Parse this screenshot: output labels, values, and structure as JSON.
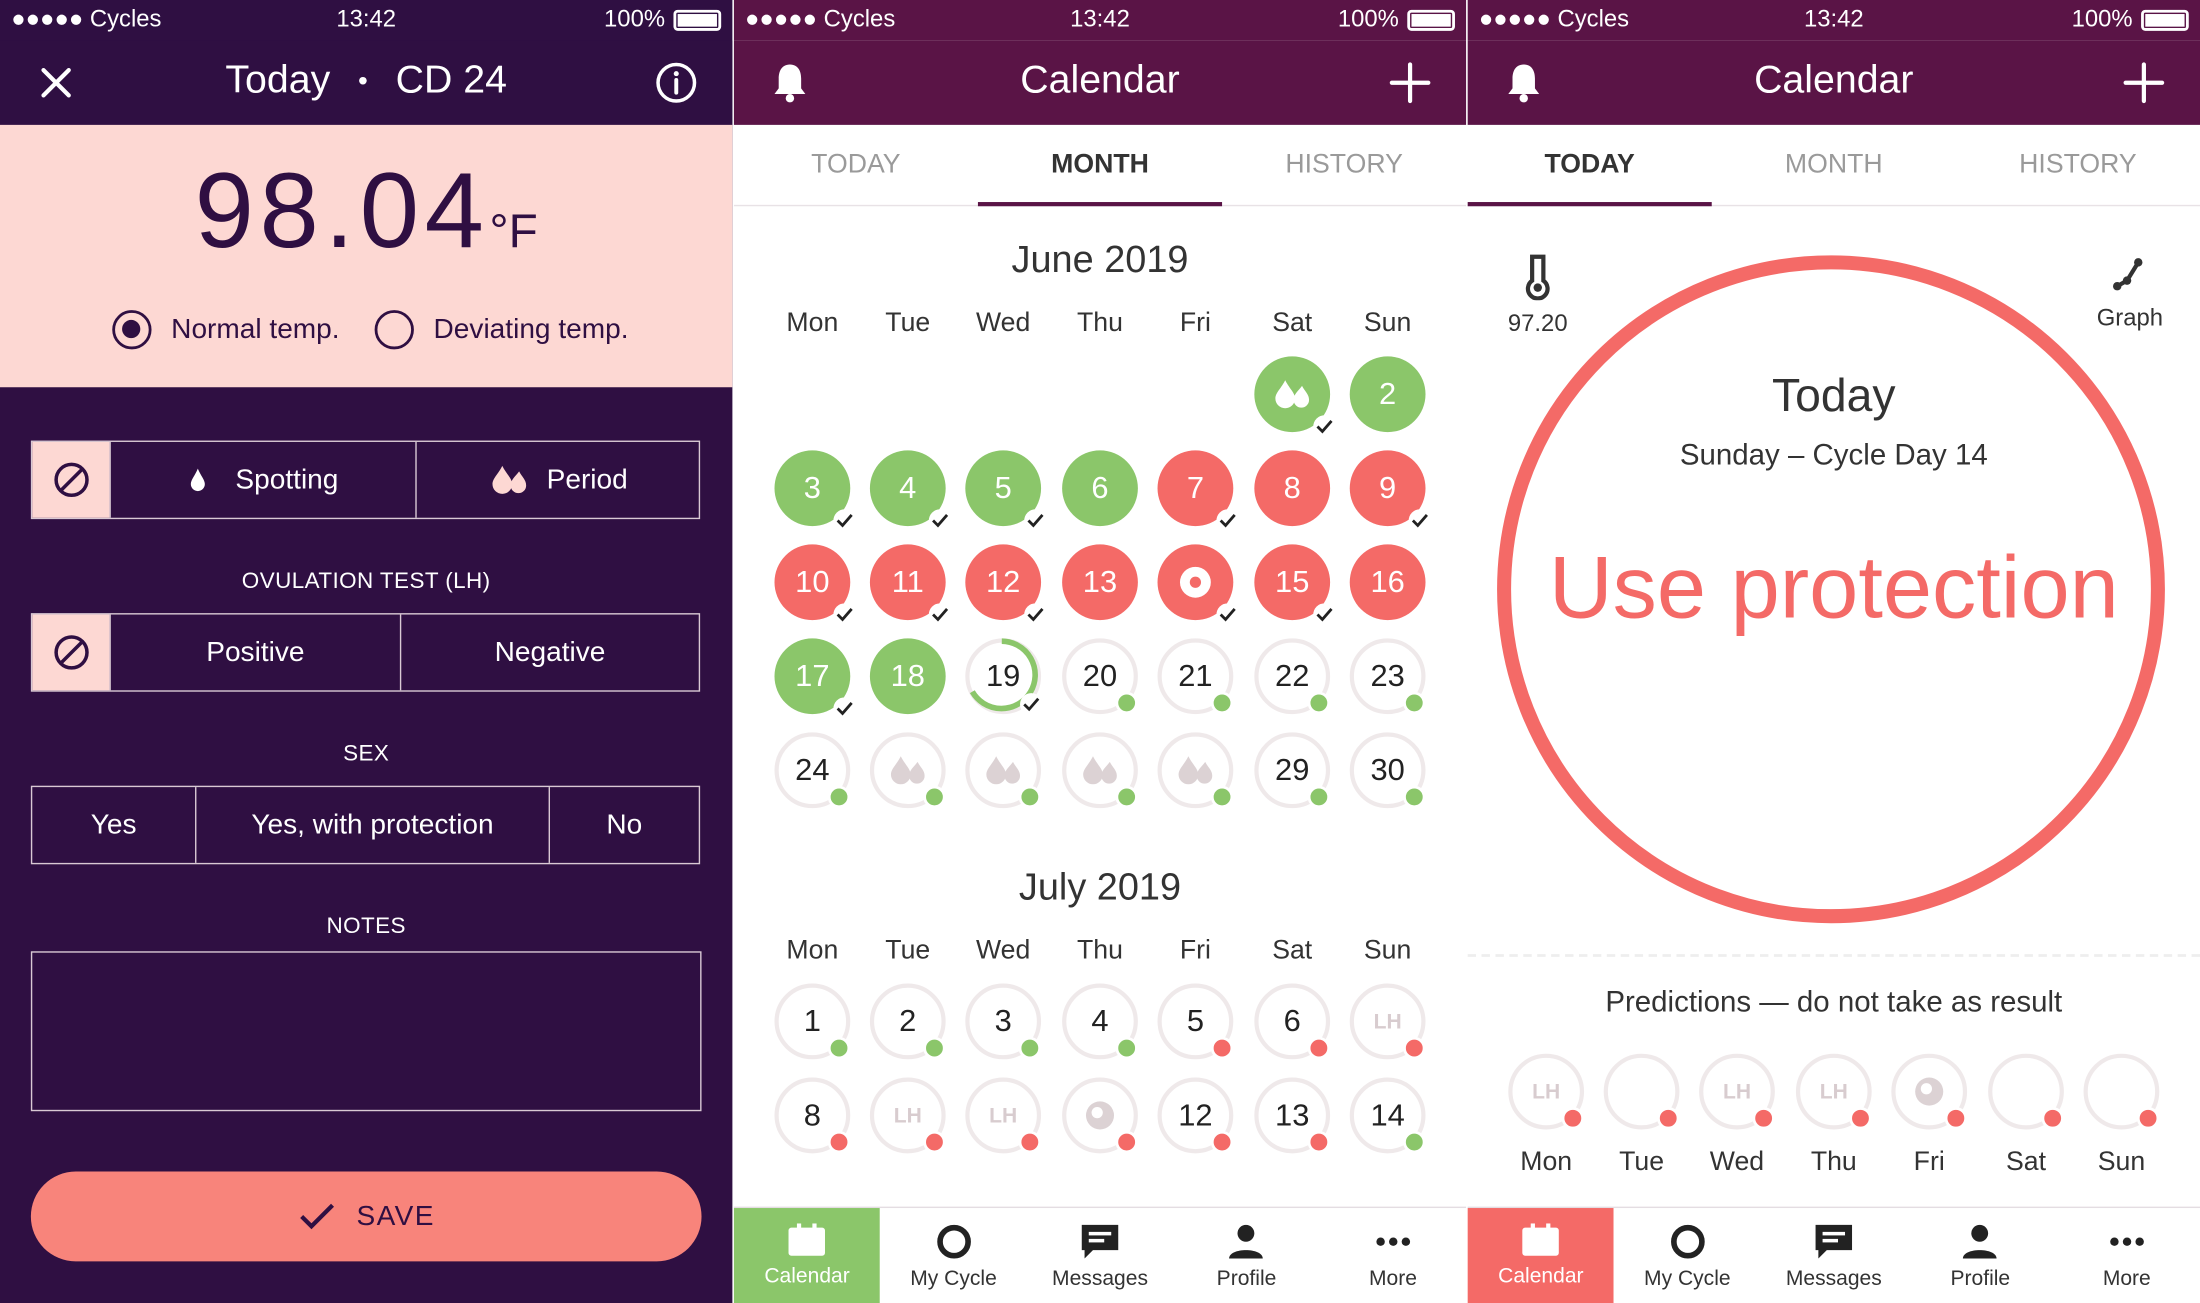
{
  "status": {
    "carrier": "●●●●● Cycles",
    "time": "13:42",
    "battery": "100%"
  },
  "entry": {
    "title": "Today",
    "cycle_day": "CD 24",
    "temp_value": "98.04",
    "temp_unit": "°F",
    "normal_temp": "Normal temp.",
    "deviating_temp": "Deviating temp.",
    "spotting": "Spotting",
    "period": "Period",
    "ovulation_label": "OVULATION TEST (LH)",
    "positive": "Positive",
    "negative": "Negative",
    "sex_label": "SEX",
    "sex_yes": "Yes",
    "sex_protected": "Yes, with protection",
    "sex_no": "No",
    "notes_label": "NOTES",
    "save": "SAVE"
  },
  "calendar": {
    "title": "Calendar",
    "tabs": [
      "TODAY",
      "MONTH",
      "HISTORY"
    ],
    "weekdays": [
      "Mon",
      "Tue",
      "Wed",
      "Thu",
      "Fri",
      "Sat",
      "Sun"
    ],
    "june": {
      "title": "June 2019",
      "rows": [
        [
          null,
          null,
          null,
          null,
          null,
          {
            "t": "",
            "s": "g",
            "icon": "drops",
            "check": true
          },
          {
            "t": "2",
            "s": "g"
          }
        ],
        [
          {
            "t": "3",
            "s": "g",
            "check": true
          },
          {
            "t": "4",
            "s": "g",
            "check": true
          },
          {
            "t": "5",
            "s": "g",
            "check": true
          },
          {
            "t": "6",
            "s": "g"
          },
          {
            "t": "7",
            "s": "r",
            "check": true
          },
          {
            "t": "8",
            "s": "r"
          },
          {
            "t": "9",
            "s": "r",
            "check": true
          }
        ],
        [
          {
            "t": "10",
            "s": "r",
            "check": true
          },
          {
            "t": "11",
            "s": "r",
            "check": true
          },
          {
            "t": "12",
            "s": "r",
            "check": true
          },
          {
            "t": "13",
            "s": "r"
          },
          {
            "t": "",
            "s": "r",
            "icon": "ovum",
            "check": true
          },
          {
            "t": "15",
            "s": "r",
            "check": true
          },
          {
            "t": "16",
            "s": "r"
          }
        ],
        [
          {
            "t": "17",
            "s": "g",
            "check": true
          },
          {
            "t": "18",
            "s": "g"
          },
          {
            "t": "19",
            "s": "today",
            "check": true
          },
          {
            "t": "20",
            "s": "e",
            "dot": "g"
          },
          {
            "t": "21",
            "s": "e",
            "dot": "g"
          },
          {
            "t": "22",
            "s": "e",
            "dot": "g"
          },
          {
            "t": "23",
            "s": "e",
            "dot": "g"
          }
        ],
        [
          {
            "t": "24",
            "s": "e",
            "dot": "g"
          },
          {
            "t": "",
            "s": "e",
            "icon": "drops-light",
            "dot": "g"
          },
          {
            "t": "",
            "s": "e",
            "icon": "drops-light",
            "dot": "g"
          },
          {
            "t": "",
            "s": "e",
            "icon": "drops-light",
            "dot": "g"
          },
          {
            "t": "",
            "s": "e",
            "icon": "drops-light",
            "dot": "g"
          },
          {
            "t": "29",
            "s": "e",
            "dot": "g"
          },
          {
            "t": "30",
            "s": "e",
            "dot": "g"
          }
        ]
      ]
    },
    "july": {
      "title": "July 2019",
      "rows": [
        [
          {
            "t": "1",
            "s": "e",
            "dot": "g"
          },
          {
            "t": "2",
            "s": "e",
            "dot": "g"
          },
          {
            "t": "3",
            "s": "e",
            "dot": "g"
          },
          {
            "t": "4",
            "s": "e",
            "dot": "g"
          },
          {
            "t": "5",
            "s": "e",
            "dot": "r"
          },
          {
            "t": "6",
            "s": "e",
            "dot": "r"
          },
          {
            "t": "LH",
            "s": "e",
            "lh": true,
            "dot": "r"
          }
        ],
        [
          {
            "t": "8",
            "s": "e",
            "dot": "r"
          },
          {
            "t": "LH",
            "s": "e",
            "lh": true,
            "dot": "r"
          },
          {
            "t": "LH",
            "s": "e",
            "lh": true,
            "dot": "r"
          },
          {
            "t": "",
            "s": "e",
            "icon": "ovum-light",
            "dot": "r"
          },
          {
            "t": "12",
            "s": "e",
            "dot": "r"
          },
          {
            "t": "13",
            "s": "e",
            "dot": "r"
          },
          {
            "t": "14",
            "s": "e",
            "dot": "g"
          }
        ]
      ]
    }
  },
  "today": {
    "temp": "97.20",
    "graph": "Graph",
    "heading": "Today",
    "subheading": "Sunday – Cycle Day 14",
    "status": "Use protection",
    "predictions_title": "Predictions — do not take as result",
    "predictions": [
      {
        "day": "Mon",
        "mark": "LH"
      },
      {
        "day": "Tue",
        "mark": ""
      },
      {
        "day": "Wed",
        "mark": "LH"
      },
      {
        "day": "Thu",
        "mark": "LH"
      },
      {
        "day": "Fri",
        "mark": "ovum"
      },
      {
        "day": "Sat",
        "mark": ""
      },
      {
        "day": "Sun",
        "mark": ""
      }
    ]
  },
  "nav": {
    "items": [
      "Calendar",
      "My Cycle",
      "Messages",
      "Profile",
      "More"
    ],
    "active_calendar_color_2": "#8bc66a",
    "active_calendar_color_3": "#f46a67"
  },
  "colors": {
    "green": "#8bc66a",
    "red": "#f46a67",
    "purple_dark": "#2f0f42",
    "purple_header": "#5a1446",
    "pink_light": "#fdd8d3"
  }
}
